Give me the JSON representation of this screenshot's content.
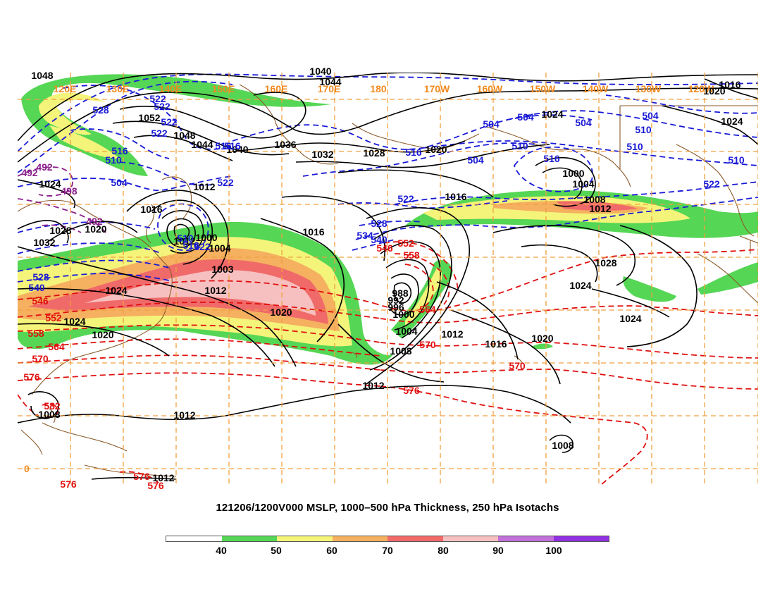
{
  "title": "121206/1200V000 MSLP, 1000–500 hPa Thickness, 250 hPa Isotachs",
  "colors": {
    "isobar": "#000000",
    "thickness_cold": "#1a1ad6",
    "thickness_warm": "#e01010",
    "thickness_very_cold": "#8b1f8b",
    "grid": "#f0a040",
    "coastline": "#8b5a2b",
    "jet_40": "#55d655",
    "jet_50": "#f4f47a",
    "jet_60": "#f5b060",
    "jet_70": "#f06a6a",
    "jet_80": "#f7c0c0"
  },
  "legend": {
    "colors": [
      "#ffffff",
      "#55d655",
      "#f4f47a",
      "#f5b060",
      "#f06a6a",
      "#f7c0c0",
      "#c070d8",
      "#9030e0"
    ],
    "labels": [
      "40",
      "50",
      "60",
      "70",
      "80",
      "90",
      "100"
    ]
  },
  "longitude_labels": [
    "120E",
    "130E",
    "140E",
    "150E",
    "160E",
    "170E",
    "180",
    "170W",
    "160W",
    "150W",
    "140W",
    "130W",
    "120W"
  ],
  "latitude_labels": [
    "0"
  ],
  "isobar_labels": [
    "1048",
    "1040",
    "1044",
    "1016",
    "1020",
    "1052",
    "1048",
    "1044",
    "1040",
    "1036",
    "1032",
    "1028",
    "1020",
    "1024",
    "1024",
    "1012",
    "1016",
    "1028",
    "1020",
    "1032",
    "1024",
    "1016",
    "1000",
    "1004",
    "1003",
    "1012",
    "1024",
    "1024",
    "1020",
    "1020",
    "988",
    "992",
    "996",
    "1000",
    "1004",
    "1008",
    "1012",
    "1016",
    "1012",
    "1016",
    "1000",
    "1004",
    "1008",
    "1012",
    "1028",
    "1024",
    "1024",
    "1020",
    "1012",
    "1008",
    "1012",
    "1008",
    "1012"
  ],
  "thickness_cold_labels": [
    "522",
    "522",
    "528",
    "522",
    "522",
    "516",
    "510",
    "504",
    "504",
    "504",
    "504",
    "510",
    "516",
    "504",
    "516",
    "522",
    "522",
    "528",
    "534",
    "540",
    "528",
    "540",
    "510",
    "516",
    "522",
    "516",
    "504",
    "510",
    "510",
    "510",
    "522",
    "516"
  ],
  "thickness_very_cold_labels": [
    "492",
    "492",
    "498",
    "492"
  ],
  "thickness_warm_labels": [
    "546",
    "552",
    "558",
    "546",
    "552",
    "558",
    "564",
    "564",
    "570",
    "570",
    "570",
    "576",
    "576",
    "576",
    "576",
    "582",
    "576"
  ]
}
